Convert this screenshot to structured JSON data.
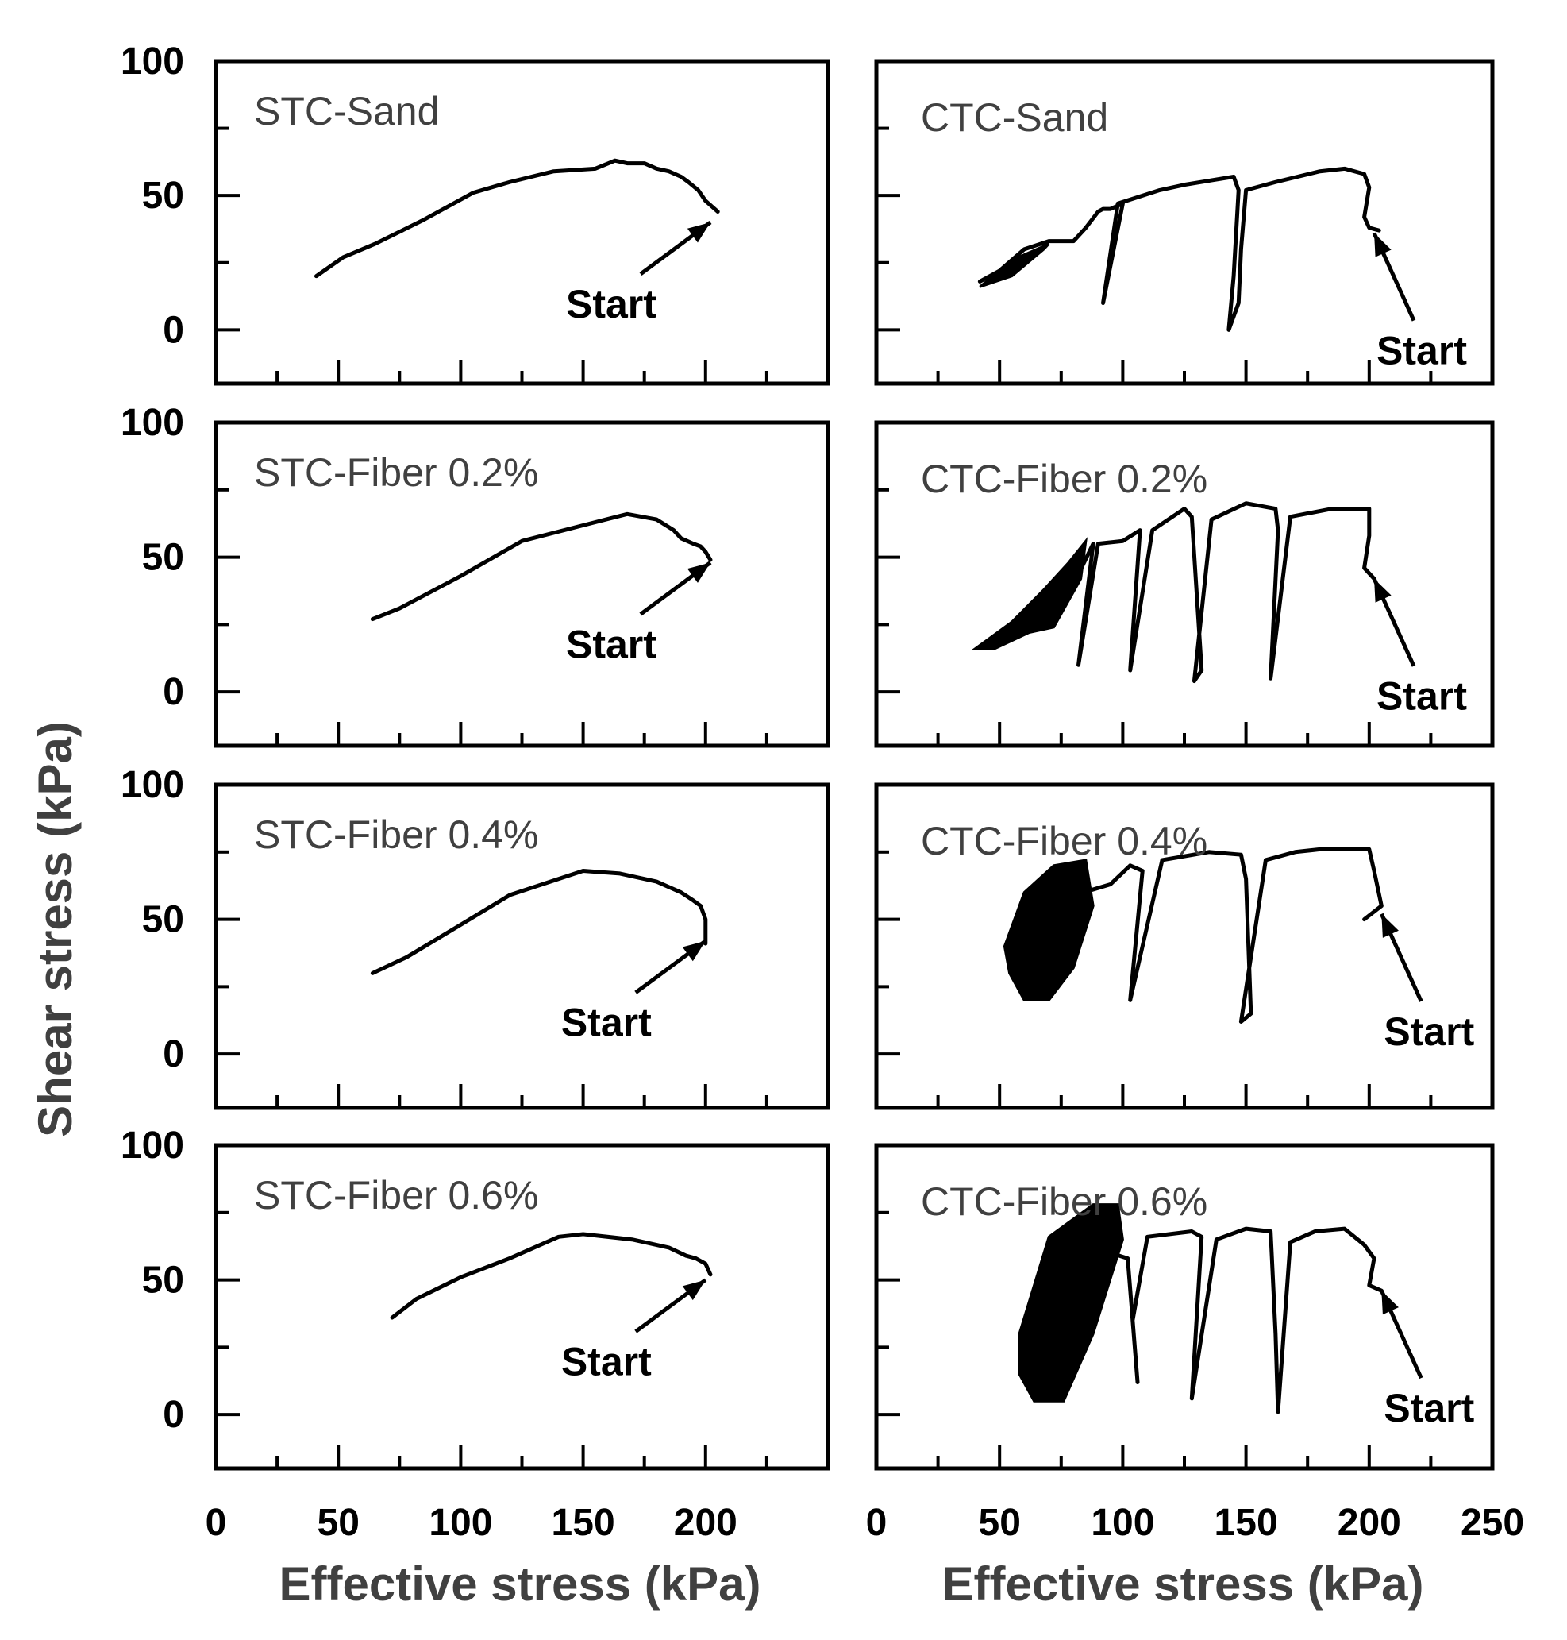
{
  "chart_data": {
    "type": "line",
    "figure": {
      "ylabel": "Shear stress (kPa)",
      "xlabel": "Effective stress (kPa)",
      "left_xlim": [
        0,
        250
      ],
      "right_xlim": [
        0,
        250
      ],
      "ylim": [
        -20,
        100
      ],
      "left_xticks": [
        "0",
        "50",
        "100",
        "150",
        "200"
      ],
      "right_xticks": [
        "0",
        "50",
        "100",
        "150",
        "200",
        "250"
      ],
      "yticks": [
        "0",
        "50",
        "100"
      ],
      "annotation": "Start"
    },
    "panels": [
      {
        "title": "STC-Sand",
        "col": 0,
        "row": 0,
        "start": [
          202,
          40
        ],
        "series": [
          {
            "name": "STC-Sand",
            "x": [
              41,
              52,
              65,
              85,
              105,
              120,
              138,
              155,
              163,
              168,
              175,
              180,
              185,
              190,
              193,
              197,
              200,
              205
            ],
            "y": [
              20,
              27,
              32,
              41,
              51,
              55,
              59,
              60,
              63,
              62,
              62,
              60,
              59,
              57,
              55,
              52,
              48,
              44
            ]
          }
        ],
        "blobs": []
      },
      {
        "title": "CTC-Sand",
        "col": 1,
        "row": 0,
        "start": [
          202,
          36
        ],
        "series": [
          {
            "name": "CTC-Sand",
            "x": [
              42,
              50,
              60,
              70,
              80,
              85,
              90,
              92,
              95,
              100,
              92,
              98,
              115,
              125,
              145,
              147,
              145,
              143,
              147,
              148,
              150,
              162,
              180,
              190,
              198,
              200,
              198,
              200,
              204
            ],
            "y": [
              18,
              22,
              30,
              33,
              33,
              38,
              44,
              45,
              45,
              47,
              10,
              47,
              52,
              54,
              57,
              52,
              20,
              0,
              10,
              30,
              52,
              55,
              59,
              60,
              58,
              53,
              42,
              38,
              37
            ]
          }
        ],
        "blobs": [
          {
            "x": [
              42,
              55,
              68,
              70,
              55
            ],
            "y": [
              16,
              20,
              30,
              32,
              26
            ]
          }
        ]
      },
      {
        "title": "STC-Fiber 0.2%",
        "col": 0,
        "row": 1,
        "start": [
          202,
          48
        ],
        "series": [
          {
            "name": "STC-Fiber 0.2%",
            "x": [
              64,
              75,
              100,
              125,
              155,
              168,
              180,
              187,
              190,
              195,
              198,
              200,
              202
            ],
            "y": [
              27,
              31,
              43,
              56,
              63,
              66,
              64,
              60,
              57,
              55,
              54,
              52,
              49
            ]
          }
        ],
        "blobs": []
      },
      {
        "title": "CTC-Fiber 0.2%",
        "col": 1,
        "row": 1,
        "start": [
          202,
          42
        ],
        "series": [
          {
            "name": "CTC-Fiber 0.2%",
            "x": [
              80,
              88,
              82,
              90,
              100,
              107,
              103,
              112,
              125,
              128,
              132,
              129,
              136,
              150,
              162,
              163,
              160,
              168,
              185,
              200,
              200,
              198,
              202
            ],
            "y": [
              40,
              55,
              10,
              55,
              56,
              60,
              8,
              60,
              68,
              65,
              8,
              4,
              64,
              70,
              68,
              60,
              5,
              65,
              68,
              68,
              58,
              46,
              42
            ]
          }
        ],
        "blobs": [
          {
            "x": [
              40,
              55,
              68,
              78,
              85,
              83,
              72,
              62,
              48
            ],
            "y": [
              16,
              26,
              38,
              48,
              56,
              42,
              24,
              22,
              16
            ]
          }
        ]
      },
      {
        "title": "STC-Fiber 0.4%",
        "col": 0,
        "row": 2,
        "start": [
          200,
          42
        ],
        "series": [
          {
            "name": "STC-Fiber 0.4%",
            "x": [
              64,
              78,
              100,
              120,
              150,
              165,
              180,
              190,
              195,
              198,
              200,
              200
            ],
            "y": [
              30,
              36,
              48,
              59,
              68,
              67,
              64,
              60,
              57,
              55,
              50,
              41
            ]
          }
        ],
        "blobs": []
      },
      {
        "title": "CTC-Fiber 0.4%",
        "col": 1,
        "row": 2,
        "start": [
          205,
          52
        ],
        "series": [
          {
            "name": "CTC-Fiber 0.4%",
            "x": [
              84,
              95,
              103,
              108,
              103,
              116,
              135,
              148,
              150,
              152,
              148,
              158,
              170,
              180,
              200,
              202,
              205,
              198
            ],
            "y": [
              60,
              63,
              70,
              68,
              20,
              72,
              75,
              74,
              65,
              15,
              12,
              72,
              75,
              76,
              76,
              68,
              55,
              50
            ]
          }
        ],
        "blobs": [
          {
            "x": [
              52,
              60,
              72,
              85,
              88,
              80,
              70,
              60,
              54
            ],
            "y": [
              40,
              60,
              70,
              72,
              55,
              32,
              20,
              20,
              30
            ]
          }
        ]
      },
      {
        "title": "STC-Fiber 0.6%",
        "col": 0,
        "row": 3,
        "start": [
          200,
          50
        ],
        "series": [
          {
            "name": "STC-Fiber 0.6%",
            "x": [
              72,
              82,
              100,
              120,
              140,
              150,
              170,
              185,
              192,
              196,
              200,
              202
            ],
            "y": [
              36,
              43,
              51,
              58,
              66,
              67,
              65,
              62,
              59,
              58,
              56,
              52
            ]
          }
        ],
        "blobs": []
      },
      {
        "title": "CTC-Fiber 0.6%",
        "col": 1,
        "row": 3,
        "start": [
          205,
          46
        ],
        "series": [
          {
            "name": "CTC-Fiber 0.6%",
            "x": [
              85,
              95,
              102,
              106,
              104,
              110,
              128,
              132,
              128,
              138,
              150,
              160,
              162,
              163,
              168,
              178,
              190,
              198,
              202,
              200,
              205
            ],
            "y": [
              58,
              60,
              58,
              12,
              35,
              66,
              68,
              66,
              6,
              65,
              69,
              68,
              30,
              1,
              64,
              68,
              69,
              63,
              58,
              48,
              46
            ]
          }
        ],
        "blobs": [
          {
            "x": [
              58,
              70,
              88,
              98,
              100,
              88,
              76,
              64,
              58
            ],
            "y": [
              30,
              66,
              78,
              78,
              65,
              30,
              5,
              5,
              15
            ]
          }
        ]
      }
    ]
  }
}
